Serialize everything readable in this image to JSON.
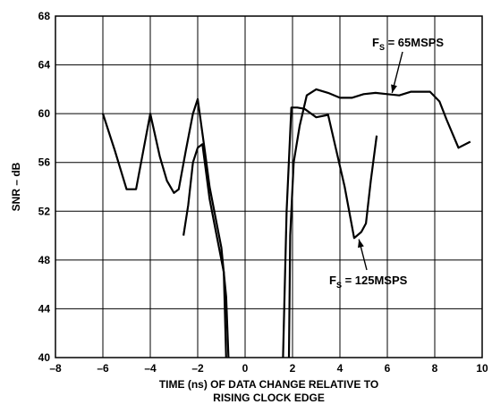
{
  "chart_data": {
    "type": "line",
    "title": "",
    "xlabel_lines": [
      "TIME (ns) OF DATA CHANGE RELATIVE TO",
      "RISING CLOCK EDGE"
    ],
    "ylabel": "SNR – dB",
    "xlim": [
      -8,
      10
    ],
    "ylim": [
      40,
      68
    ],
    "xticks": [
      -8,
      -6,
      -4,
      -2,
      0,
      2,
      4,
      6,
      8,
      10
    ],
    "yticks": [
      40,
      44,
      48,
      52,
      56,
      60,
      64,
      68
    ],
    "xtick_labels": [
      "–8",
      "–6",
      "–4",
      "–2",
      "0",
      "2",
      "4",
      "6",
      "8",
      "10"
    ],
    "ytick_labels": [
      "40",
      "44",
      "48",
      "52",
      "56",
      "60",
      "64",
      "68"
    ],
    "grid": true,
    "series": [
      {
        "name": "F_S = 65MSPS",
        "color": "#000000",
        "segments": [
          [
            [
              -6,
              60
            ],
            [
              -5.5,
              57
            ],
            [
              -5,
              53.8
            ],
            [
              -4.6,
              53.8
            ],
            [
              -4,
              60
            ],
            [
              -3.6,
              56.5
            ],
            [
              -3.3,
              54.5
            ],
            [
              -3,
              53.5
            ],
            [
              -2.8,
              53.8
            ],
            [
              -2.5,
              57
            ],
            [
              -2.2,
              60
            ],
            [
              -2,
              61.2
            ],
            [
              -1.7,
              57
            ],
            [
              -1.5,
              54
            ],
            [
              -1.2,
              51
            ],
            [
              -1,
              49
            ],
            [
              -0.8,
              45
            ],
            [
              -0.7,
              40
            ]
          ],
          [
            [
              1.85,
              40
            ],
            [
              1.9,
              50
            ],
            [
              2.05,
              56
            ],
            [
              2.3,
              59
            ],
            [
              2.6,
              61.5
            ],
            [
              3,
              62
            ],
            [
              3.5,
              61.7
            ],
            [
              4,
              61.3
            ],
            [
              4.5,
              61.3
            ],
            [
              5,
              61.6
            ],
            [
              5.5,
              61.7
            ],
            [
              6,
              61.6
            ],
            [
              6.5,
              61.5
            ],
            [
              7,
              61.8
            ],
            [
              7.5,
              61.8
            ],
            [
              7.8,
              61.8
            ],
            [
              8.2,
              61
            ],
            [
              8.5,
              59.5
            ],
            [
              9,
              57.2
            ],
            [
              9.5,
              57.7
            ]
          ]
        ]
      },
      {
        "name": "F_S = 125MSPS",
        "color": "#000000",
        "segments": [
          [
            [
              -2.6,
              50
            ],
            [
              -2.4,
              52.5
            ],
            [
              -2.2,
              56
            ],
            [
              -2,
              57.2
            ],
            [
              -1.8,
              57.5
            ],
            [
              -1.5,
              53
            ],
            [
              -1.2,
              50
            ],
            [
              -0.9,
              47
            ],
            [
              -0.8,
              40
            ]
          ],
          [
            [
              1.6,
              40
            ],
            [
              1.75,
              52
            ],
            [
              1.95,
              60.5
            ],
            [
              2.2,
              60.5
            ],
            [
              2.5,
              60.4
            ],
            [
              3,
              59.7
            ],
            [
              3.5,
              59.9
            ],
            [
              4.2,
              54
            ],
            [
              4.6,
              49.8
            ],
            [
              4.9,
              50.3
            ],
            [
              5.1,
              51
            ],
            [
              5.3,
              54.5
            ],
            [
              5.55,
              58.2
            ]
          ]
        ]
      }
    ],
    "annotations": [
      {
        "id": "fs65",
        "text": "F",
        "sub": "S",
        "rest": " = 65MSPS",
        "arrow_to": [
          6.2,
          61.7
        ]
      },
      {
        "id": "fs125",
        "text": "F",
        "sub": "S",
        "rest": " = 125MSPS",
        "arrow_to": [
          4.8,
          49.7
        ]
      }
    ]
  }
}
